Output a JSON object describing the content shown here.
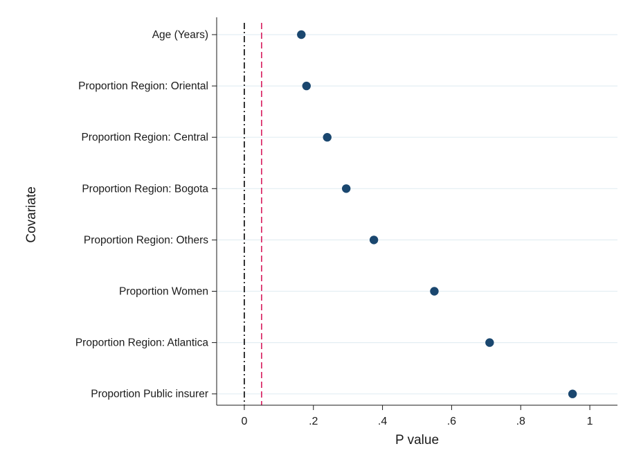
{
  "chart_data": {
    "type": "scatter",
    "xlabel": "P value",
    "ylabel": "Covariate",
    "xlim": [
      -0.08,
      1.08
    ],
    "x_ticks": [
      {
        "value": 0,
        "label": "0"
      },
      {
        "value": 0.2,
        "label": ".2"
      },
      {
        "value": 0.4,
        "label": ".4"
      },
      {
        "value": 0.6,
        "label": ".6"
      },
      {
        "value": 0.8,
        "label": ".8"
      },
      {
        "value": 1,
        "label": "1"
      }
    ],
    "categories": [
      "Age (Years)",
      "Proportion Region: Oriental",
      "Proportion Region: Central",
      "Proportion Region: Bogota",
      "Proportion Region: Others",
      "Proportion Women",
      "Proportion Region: Atlantica",
      "Proportion Public insurer"
    ],
    "values": [
      0.165,
      0.18,
      0.24,
      0.295,
      0.375,
      0.55,
      0.71,
      0.95
    ],
    "reference_lines": [
      {
        "x": 0,
        "color": "#000000",
        "style": "dash-dot"
      },
      {
        "x": 0.05,
        "color": "#d6185a",
        "style": "dashed"
      }
    ],
    "marker_color": "#1a476f",
    "grid_color": "#e3eef3",
    "grid": true,
    "legend": "none"
  }
}
